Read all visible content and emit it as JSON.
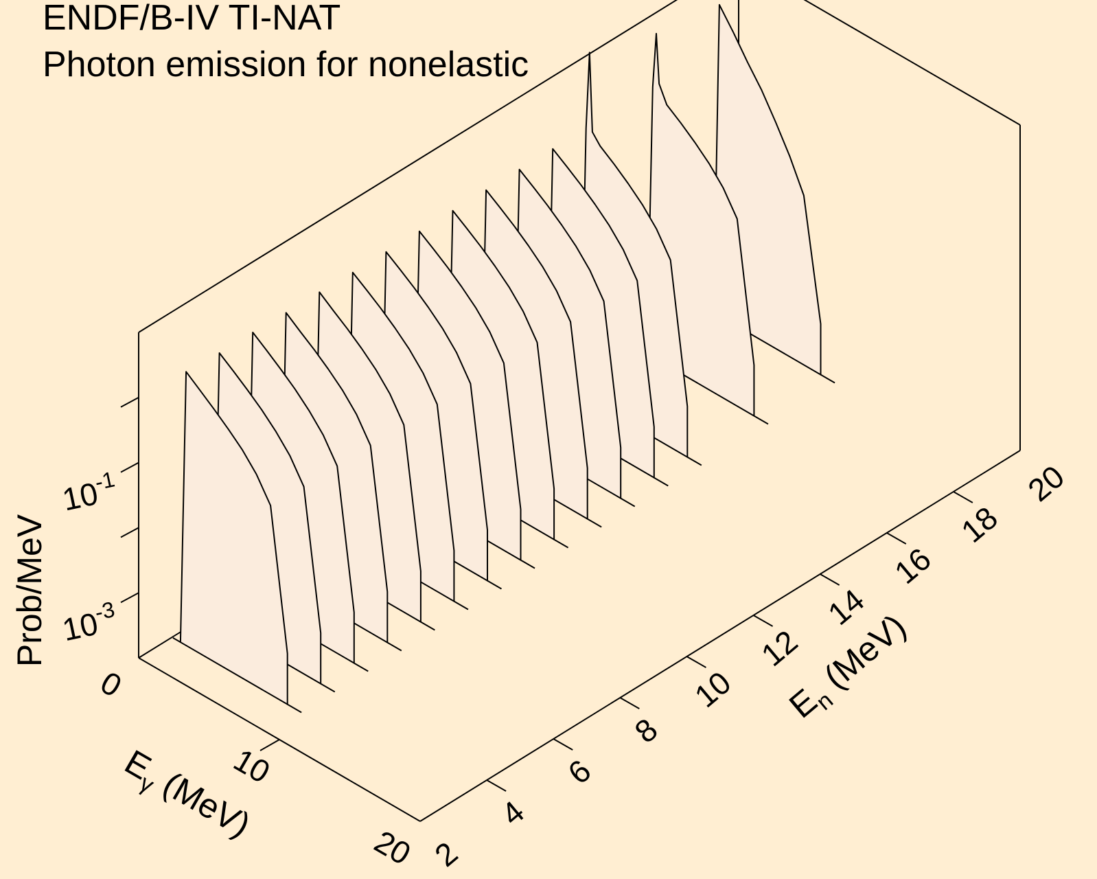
{
  "chart_data": {
    "type": "3d-waterfall",
    "title": "ENDF/B-IV TI-NAT",
    "subtitle": "Photon emission for nonelastic",
    "x_axis": {
      "label": "E",
      "label_sub": "γ",
      "label_unit": "(MeV)",
      "range": [
        0,
        20
      ],
      "ticks": [
        "0",
        "10",
        "20"
      ]
    },
    "y_axis": {
      "label": "E",
      "label_sub": "n",
      "label_unit": "(MeV)",
      "range": [
        2,
        20
      ],
      "ticks": [
        "2",
        "4",
        "6",
        "8",
        "10",
        "12",
        "14",
        "16",
        "18",
        "20"
      ]
    },
    "z_axis": {
      "label": "Prob/MeV",
      "scale": "log",
      "range": [
        0.0001,
        10
      ],
      "ticks": [
        {
          "base": "10",
          "exp": "-3",
          "value": 0.001
        },
        {
          "base": "10",
          "exp": "-1",
          "value": 0.1
        }
      ]
    },
    "colors": {
      "background": "#ffeed2",
      "curve_fill": "#fbecdd",
      "line": "#000000"
    },
    "series": [
      {
        "En": 3.0,
        "Egamma": [
          0.1,
          0.6,
          1.0,
          2,
          3,
          4,
          5,
          6,
          7,
          8.2
        ],
        "prob": [
          0.0001,
          0.0001,
          1.6,
          1.1,
          0.75,
          0.5,
          0.32,
          0.18,
          0.08,
          0.0006
        ]
      },
      {
        "En": 4.0,
        "Egamma": [
          0.1,
          0.6,
          1.0,
          2,
          3,
          4,
          5,
          6,
          7,
          8.2
        ],
        "prob": [
          0.0001,
          0.0001,
          1.5,
          1.05,
          0.72,
          0.48,
          0.3,
          0.17,
          0.075,
          0.0006
        ]
      },
      {
        "En": 5.0,
        "Egamma": [
          0.1,
          0.6,
          1.0,
          2,
          3,
          4,
          5,
          6,
          7,
          8.2
        ],
        "prob": [
          0.0001,
          0.0001,
          1.5,
          1.05,
          0.72,
          0.48,
          0.3,
          0.17,
          0.075,
          0.0006
        ]
      },
      {
        "En": 6.0,
        "Egamma": [
          0.1,
          0.6,
          1.0,
          2,
          3,
          4,
          5,
          6,
          7,
          8.2
        ],
        "prob": [
          0.0001,
          0.0001,
          1.45,
          1.0,
          0.7,
          0.47,
          0.3,
          0.17,
          0.075,
          0.0006
        ]
      },
      {
        "En": 7.0,
        "Egamma": [
          0.1,
          0.6,
          1.0,
          2,
          3,
          4,
          5,
          6,
          7,
          8.2
        ],
        "prob": [
          0.0001,
          0.0001,
          1.45,
          1.0,
          0.7,
          0.47,
          0.3,
          0.17,
          0.075,
          0.0006
        ]
      },
      {
        "En": 8.0,
        "Egamma": [
          0.1,
          0.6,
          1.0,
          2,
          3,
          4,
          5,
          6,
          7,
          8.2
        ],
        "prob": [
          0.0001,
          0.0001,
          1.4,
          1.0,
          0.7,
          0.47,
          0.3,
          0.17,
          0.075,
          0.0006
        ]
      },
      {
        "En": 9.0,
        "Egamma": [
          0.1,
          0.6,
          1.0,
          2,
          3,
          4,
          5,
          6,
          7,
          8.2
        ],
        "prob": [
          0.0001,
          0.0001,
          1.4,
          1.0,
          0.7,
          0.47,
          0.3,
          0.17,
          0.075,
          0.0006
        ]
      },
      {
        "En": 10.0,
        "Egamma": [
          0.1,
          0.6,
          1.0,
          2,
          3,
          4,
          5,
          6,
          7,
          8.2
        ],
        "prob": [
          0.0001,
          0.0001,
          1.4,
          1.0,
          0.7,
          0.47,
          0.3,
          0.17,
          0.075,
          0.0006
        ]
      },
      {
        "En": 11.0,
        "Egamma": [
          0.1,
          0.6,
          1.0,
          2,
          3,
          4,
          5,
          6,
          7,
          8.2
        ],
        "prob": [
          0.0001,
          0.0001,
          1.4,
          1.0,
          0.7,
          0.47,
          0.3,
          0.17,
          0.075,
          0.0006
        ]
      },
      {
        "En": 12.0,
        "Egamma": [
          0.1,
          0.6,
          1.0,
          2,
          3,
          4,
          5,
          6,
          7,
          8.2
        ],
        "prob": [
          0.0001,
          0.0001,
          1.4,
          1.0,
          0.7,
          0.47,
          0.3,
          0.17,
          0.075,
          0.0006
        ]
      },
      {
        "En": 13.0,
        "Egamma": [
          0.1,
          0.6,
          1.0,
          2,
          3,
          4,
          5,
          6,
          7,
          8.2
        ],
        "prob": [
          0.0001,
          0.0001,
          1.4,
          1.0,
          0.7,
          0.47,
          0.3,
          0.17,
          0.075,
          0.0006
        ]
      },
      {
        "En": 14.0,
        "Egamma": [
          0.1,
          0.6,
          1.0,
          2,
          3,
          4,
          5,
          6,
          7,
          8.2
        ],
        "prob": [
          0.0001,
          0.0001,
          1.4,
          1.0,
          0.7,
          0.47,
          0.3,
          0.17,
          0.075,
          0.0006
        ]
      },
      {
        "En": 15.0,
        "Egamma": [
          0.1,
          0.6,
          1.0,
          1.25,
          1.45,
          2,
          3,
          4,
          5,
          6,
          7,
          8.2
        ],
        "prob": [
          0.0001,
          0.0001,
          1.4,
          22,
          1.4,
          1.0,
          0.7,
          0.47,
          0.3,
          0.17,
          0.075,
          0.0006
        ]
      },
      {
        "En": 17.0,
        "Egamma": [
          0.1,
          0.6,
          1.0,
          1.25,
          1.45,
          2,
          3,
          4,
          5,
          6,
          7,
          8.2
        ],
        "prob": [
          0.0001,
          0.0001,
          1.4,
          10,
          1.8,
          1.0,
          0.7,
          0.47,
          0.3,
          0.17,
          0.075,
          0.0006
        ]
      },
      {
        "En": 19.0,
        "Egamma": [
          0.1,
          0.6,
          1.0,
          2,
          3,
          4,
          5,
          6,
          7,
          8.2
        ],
        "prob": [
          0.0001,
          0.0001,
          6.0,
          3.0,
          1.4,
          0.7,
          0.3,
          0.12,
          0.04,
          0.0006
        ]
      }
    ]
  }
}
